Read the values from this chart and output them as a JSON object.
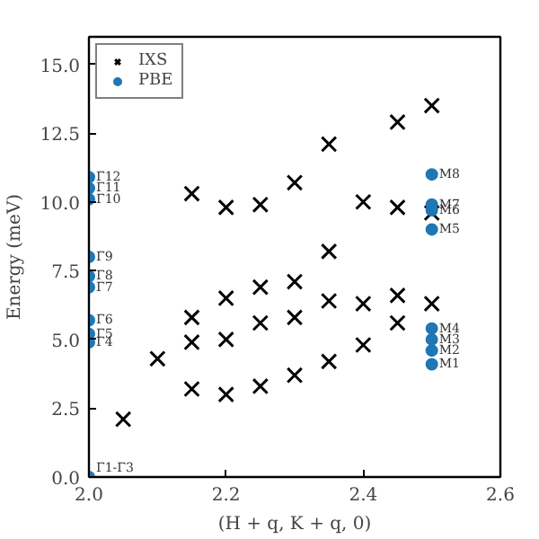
{
  "chart_data": {
    "type": "scatter",
    "xlabel": "(H + q, K + q, 0)",
    "ylabel": "Energy (meV)",
    "xlim": [
      2.0,
      2.6
    ],
    "ylim": [
      0,
      16
    ],
    "xticks": [
      {
        "value": 2.0,
        "label": "2.0"
      },
      {
        "value": 2.2,
        "label": "2.2"
      },
      {
        "value": 2.4,
        "label": "2.4"
      },
      {
        "value": 2.6,
        "label": "2.6"
      }
    ],
    "yticks": [
      {
        "value": 0,
        "label": "0.0"
      },
      {
        "value": 2.5,
        "label": "2.5"
      },
      {
        "value": 5,
        "label": "5.0"
      },
      {
        "value": 7.5,
        "label": "7.5"
      },
      {
        "value": 10,
        "label": "10.0"
      },
      {
        "value": 12.5,
        "label": "12.5"
      },
      {
        "value": 15,
        "label": "15.0"
      }
    ],
    "grid": false,
    "legend": "top left",
    "series": [
      {
        "name": "IXS",
        "color": "#000000",
        "marker": "cross",
        "x": [
          2.05,
          2.1,
          2.15,
          2.15,
          2.15,
          2.15,
          2.2,
          2.2,
          2.2,
          2.2,
          2.25,
          2.25,
          2.25,
          2.25,
          2.3,
          2.3,
          2.3,
          2.3,
          2.35,
          2.35,
          2.35,
          2.35,
          2.4,
          2.4,
          2.4,
          2.45,
          2.45,
          2.45,
          2.45,
          2.5,
          2.5,
          2.5
        ],
        "values": [
          2.1,
          4.3,
          10.3,
          5.8,
          4.9,
          3.2,
          9.8,
          6.5,
          5.0,
          3.0,
          9.9,
          6.9,
          5.6,
          3.3,
          10.7,
          7.1,
          5.8,
          3.7,
          12.1,
          8.2,
          6.4,
          4.2,
          10.0,
          6.3,
          4.8,
          12.9,
          9.8,
          6.6,
          5.6,
          13.5,
          9.6,
          6.3
        ]
      },
      {
        "name": "PBE",
        "color": "#1f77b4",
        "marker": "circle",
        "x": [
          2.0,
          2.0,
          2.0,
          2.0,
          2.0,
          2.0,
          2.0,
          2.0,
          2.0,
          2.0,
          2.5,
          2.5,
          2.5,
          2.5,
          2.5,
          2.5,
          2.5,
          2.5
        ],
        "values": [
          0,
          4.9,
          5.2,
          5.7,
          6.9,
          7.3,
          8.0,
          10.1,
          10.5,
          10.9,
          4.1,
          4.6,
          5.0,
          5.4,
          9.0,
          9.7,
          9.9,
          11.0
        ],
        "value_labels": [
          "Γ1-Γ3",
          "Γ4",
          "Γ5",
          "Γ6",
          "Γ7",
          "Γ8",
          "Γ9",
          "Γ10",
          "Γ11",
          "Γ12",
          "M1",
          "M2",
          "M3",
          "M4",
          "M5",
          "M6",
          "M7",
          "M8"
        ]
      }
    ]
  }
}
